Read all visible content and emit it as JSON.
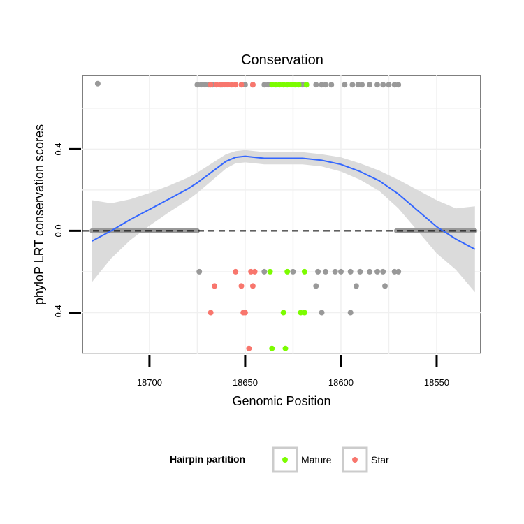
{
  "chart_data": {
    "type": "scatter",
    "title": "Conservation",
    "xlabel": "Genomic Position",
    "ylabel": "phyloP LRT conservation scores",
    "x_reversed": true,
    "xlim": [
      18735,
      18527
    ],
    "ylim": [
      -0.6,
      0.76
    ],
    "x_ticks": [
      18700,
      18650,
      18600,
      18550
    ],
    "y_ticks": [
      -0.4,
      0.0,
      0.4
    ],
    "x_tick_labels": [
      "18700",
      "18650",
      "18600",
      "18550"
    ],
    "y_tick_labels": [
      "-0.4",
      "0.0",
      "0.4"
    ],
    "reference_line": {
      "y": 0,
      "style": "dashed"
    },
    "legend": {
      "title": "Hairpin partition",
      "position": "bottom",
      "entries": [
        {
          "label": "Mature",
          "color": "#7cfc00"
        },
        {
          "label": "Star",
          "color": "#f8766d"
        }
      ]
    },
    "colors": {
      "other": "#999999",
      "Mature": "#7cfc00",
      "Star": "#f8766d",
      "smooth": "#3366ff",
      "band": "#d9d9d9"
    },
    "zero_runs": [
      {
        "from": 18730,
        "to": 18675,
        "partition": "other"
      },
      {
        "from": 18571,
        "to": 18530,
        "partition": "other"
      }
    ],
    "series": [
      {
        "name": "other",
        "points": [
          [
            18727,
            0.72
          ],
          [
            18675,
            0.715
          ],
          [
            18673,
            0.715
          ],
          [
            18671,
            0.715
          ],
          [
            18669,
            0.715
          ],
          [
            18667,
            0.715
          ],
          [
            18662,
            0.715
          ],
          [
            18660,
            0.715
          ],
          [
            18650,
            0.715
          ],
          [
            18646,
            0.715
          ],
          [
            18640,
            0.715
          ],
          [
            18638,
            0.715
          ],
          [
            18636,
            0.715
          ],
          [
            18620,
            0.715
          ],
          [
            18618,
            0.715
          ],
          [
            18613,
            0.715
          ],
          [
            18610,
            0.715
          ],
          [
            18608,
            0.715
          ],
          [
            18605,
            0.715
          ],
          [
            18598,
            0.715
          ],
          [
            18594,
            0.715
          ],
          [
            18591,
            0.715
          ],
          [
            18589,
            0.715
          ],
          [
            18585,
            0.715
          ],
          [
            18581,
            0.715
          ],
          [
            18578,
            0.715
          ],
          [
            18575,
            0.715
          ],
          [
            18572,
            0.715
          ],
          [
            18570,
            0.715
          ],
          [
            18674,
            -0.2
          ],
          [
            18640,
            -0.2
          ],
          [
            18625,
            -0.2
          ],
          [
            18612,
            -0.2
          ],
          [
            18608,
            -0.2
          ],
          [
            18603,
            -0.2
          ],
          [
            18600,
            -0.2
          ],
          [
            18595,
            -0.2
          ],
          [
            18590,
            -0.2
          ],
          [
            18585,
            -0.2
          ],
          [
            18581,
            -0.2
          ],
          [
            18578,
            -0.2
          ],
          [
            18572,
            -0.2
          ],
          [
            18570,
            -0.2
          ],
          [
            18613,
            -0.27
          ],
          [
            18592,
            -0.27
          ],
          [
            18577,
            -0.27
          ],
          [
            18610,
            -0.4
          ],
          [
            18595,
            -0.4
          ]
        ]
      },
      {
        "name": "Mature",
        "points": [
          [
            18636,
            0.715
          ],
          [
            18634,
            0.715
          ],
          [
            18632,
            0.715
          ],
          [
            18630,
            0.715
          ],
          [
            18628,
            0.715
          ],
          [
            18626,
            0.715
          ],
          [
            18624,
            0.715
          ],
          [
            18622,
            0.715
          ],
          [
            18618,
            0.715
          ],
          [
            18637,
            -0.2
          ],
          [
            18628,
            -0.2
          ],
          [
            18619,
            -0.2
          ],
          [
            18630,
            -0.4
          ],
          [
            18621,
            -0.4
          ],
          [
            18619,
            -0.4
          ],
          [
            18636,
            -0.575
          ],
          [
            18629,
            -0.575
          ]
        ]
      },
      {
        "name": "Star",
        "points": [
          [
            18668,
            0.715
          ],
          [
            18665,
            0.715
          ],
          [
            18663,
            0.715
          ],
          [
            18661,
            0.715
          ],
          [
            18659,
            0.715
          ],
          [
            18657,
            0.715
          ],
          [
            18655,
            0.715
          ],
          [
            18652,
            0.715
          ],
          [
            18646,
            0.715
          ],
          [
            18655,
            -0.2
          ],
          [
            18647,
            -0.2
          ],
          [
            18645,
            -0.2
          ],
          [
            18666,
            -0.27
          ],
          [
            18652,
            -0.27
          ],
          [
            18646,
            -0.27
          ],
          [
            18668,
            -0.4
          ],
          [
            18651,
            -0.4
          ],
          [
            18650,
            -0.4
          ],
          [
            18648,
            -0.575
          ]
        ]
      }
    ],
    "smooth": {
      "x": [
        18730,
        18720,
        18710,
        18700,
        18690,
        18680,
        18675,
        18670,
        18660,
        18655,
        18650,
        18645,
        18640,
        18630,
        18620,
        18610,
        18600,
        18590,
        18580,
        18570,
        18560,
        18550,
        18540,
        18530
      ],
      "y": [
        -0.05,
        0.0,
        0.055,
        0.105,
        0.155,
        0.205,
        0.235,
        0.27,
        0.34,
        0.36,
        0.365,
        0.36,
        0.355,
        0.355,
        0.355,
        0.345,
        0.325,
        0.29,
        0.245,
        0.18,
        0.1,
        0.02,
        -0.04,
        -0.09
      ],
      "upper": [
        0.15,
        0.135,
        0.155,
        0.185,
        0.22,
        0.26,
        0.285,
        0.315,
        0.375,
        0.39,
        0.395,
        0.39,
        0.385,
        0.385,
        0.385,
        0.375,
        0.36,
        0.33,
        0.295,
        0.25,
        0.2,
        0.15,
        0.11,
        0.12
      ],
      "lower": [
        -0.25,
        -0.135,
        -0.045,
        0.025,
        0.09,
        0.15,
        0.185,
        0.225,
        0.305,
        0.33,
        0.335,
        0.33,
        0.325,
        0.325,
        0.325,
        0.315,
        0.29,
        0.25,
        0.195,
        0.11,
        0.0,
        -0.11,
        -0.19,
        -0.3
      ]
    }
  }
}
